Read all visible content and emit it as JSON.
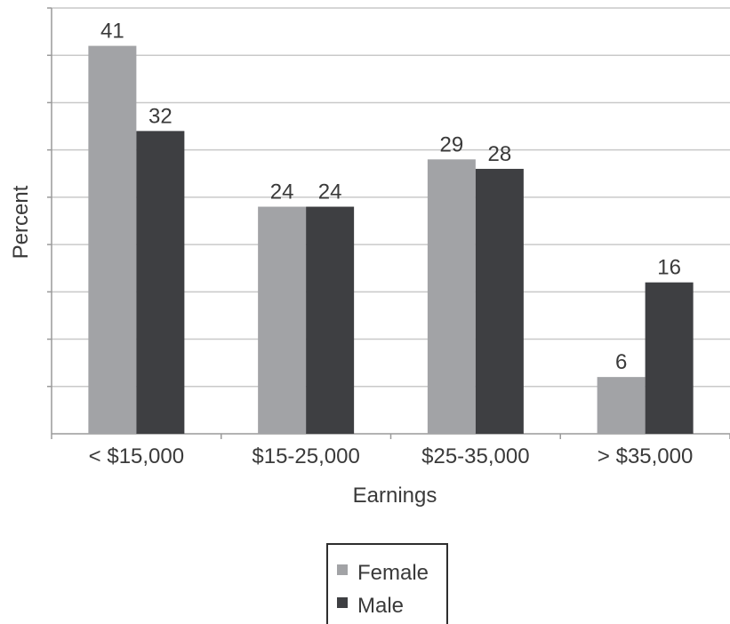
{
  "chart_data": {
    "type": "bar",
    "categories": [
      "< $15,000",
      "$15-25,000",
      "$25-35,000",
      "> $35,000"
    ],
    "series": [
      {
        "name": "Female",
        "values": [
          41,
          24,
          29,
          6
        ],
        "color": "#a2a3a6"
      },
      {
        "name": "Male",
        "values": [
          32,
          24,
          28,
          16
        ],
        "color": "#3e3f42"
      }
    ],
    "xlabel": "Earnings",
    "ylabel": "Percent",
    "ylim": [
      0,
      45
    ],
    "grid": true,
    "legend_position": "bottom-center"
  }
}
